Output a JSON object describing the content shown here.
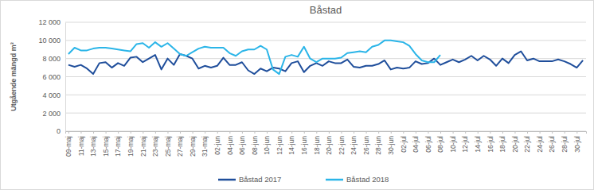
{
  "chart_data": {
    "type": "line",
    "title": "Båstad",
    "y_label": "Utgående mängd m³",
    "categories": [
      "09-maj",
      null,
      "11-maj",
      null,
      "13-maj",
      null,
      "15-maj",
      null,
      "17-maj",
      null,
      "19-maj",
      null,
      "21-maj",
      null,
      "23-maj",
      null,
      "25-maj",
      null,
      "27-maj",
      null,
      "29-maj",
      null,
      "31-maj",
      null,
      "02-jun",
      null,
      "04-jun",
      null,
      "06-jun",
      null,
      "08-jun",
      null,
      "10-jun",
      null,
      "12-jun",
      null,
      "14-jun",
      null,
      "16-jun",
      null,
      "18-jun",
      null,
      "20-jun",
      null,
      "22-jun",
      null,
      "24-jun",
      null,
      "26-jun",
      null,
      "28-jun",
      null,
      "30-jun",
      null,
      "02-jul",
      null,
      "04-jul",
      null,
      "06-jul",
      null,
      "08-jul",
      null,
      "10-jul",
      null,
      "12-jul",
      null,
      "14-jul",
      null,
      "16-jul",
      null,
      "18-jul",
      null,
      "20-jul",
      null,
      "22-jul",
      null,
      "24-jul",
      null,
      "26-jul",
      null,
      "28-jul",
      null,
      "30-jul",
      null
    ],
    "series": [
      {
        "name": "Båstad 2017",
        "color": "#1f4e9b",
        "values": [
          7300,
          7100,
          7300,
          6900,
          6300,
          7500,
          7600,
          7000,
          7500,
          7200,
          8100,
          8200,
          7600,
          8000,
          8400,
          6800,
          8000,
          7300,
          8500,
          8300,
          8000,
          6900,
          7200,
          7000,
          7200,
          8100,
          7300,
          7300,
          7600,
          6700,
          6300,
          6900,
          6600,
          7000,
          6900,
          6600,
          7500,
          7700,
          6500,
          7200,
          7500,
          7200,
          7700,
          7500,
          7500,
          7900,
          7100,
          7000,
          7200,
          7200,
          7400,
          7800,
          6800,
          7000,
          6900,
          7000,
          7700,
          7400,
          7500,
          8000,
          7300,
          7600,
          7900,
          7600,
          7900,
          8300,
          7800,
          8300,
          7900,
          7200,
          8000,
          7500,
          8400,
          8800,
          7800,
          8000,
          7700,
          7700,
          7700,
          7900,
          7700,
          7400,
          7000,
          7800
        ]
      },
      {
        "name": "Båstad 2018",
        "color": "#2bb5e8",
        "values": [
          8500,
          9200,
          8900,
          8900,
          9100,
          9200,
          9200,
          9100,
          9000,
          8900,
          8800,
          9600,
          9700,
          9200,
          9800,
          9300,
          9700,
          9100,
          8500,
          8300,
          8700,
          9100,
          9300,
          9200,
          9200,
          9200,
          8600,
          8300,
          8800,
          9000,
          9000,
          9400,
          9000,
          6800,
          6300,
          8200,
          8400,
          8200,
          9300,
          8000,
          7600,
          8000,
          8000,
          8000,
          8100,
          8600,
          8700,
          8800,
          8700,
          9300,
          9500,
          10000,
          10000,
          9900,
          9800,
          9400,
          8500,
          7800,
          7600,
          7600,
          8400,
          null,
          null,
          null,
          null,
          null,
          null,
          null,
          null,
          null,
          null,
          null,
          null,
          null,
          null,
          null,
          null,
          null,
          null,
          null,
          null,
          null,
          null,
          null
        ]
      }
    ],
    "ylim": [
      0,
      12000
    ],
    "yticks": [
      0,
      {
        "value": 2000,
        "label": "2 000"
      },
      {
        "value": 4000,
        "label": "4 000"
      },
      {
        "value": 6000,
        "label": "6 000"
      },
      {
        "value": 8000,
        "label": "8 000"
      },
      {
        "value": 10000,
        "label": "10 000"
      },
      {
        "value": 12000,
        "label": "12 000"
      }
    ],
    "grid": true,
    "legend": "bottom"
  }
}
